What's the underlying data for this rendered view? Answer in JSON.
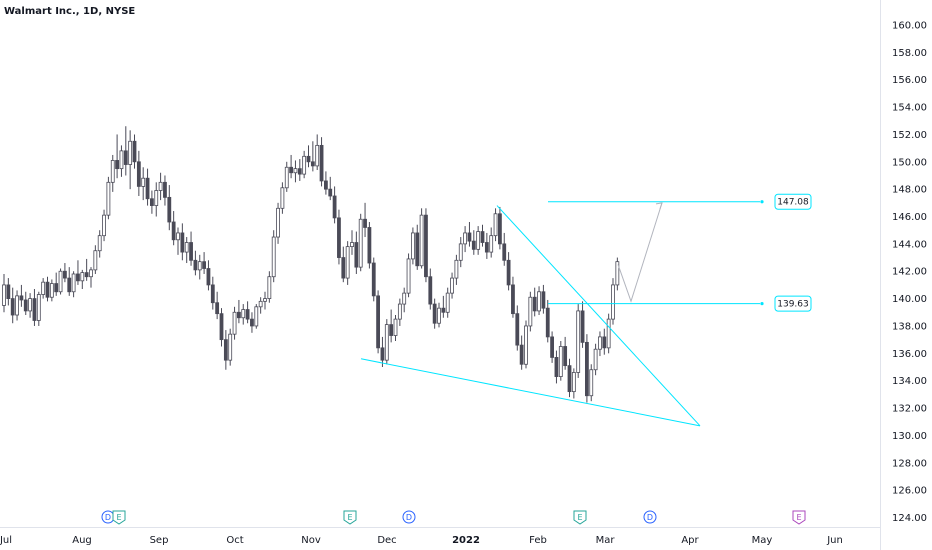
{
  "chart_data": {
    "type": "candlestick",
    "title": "Walmart Inc., 1D, NYSE",
    "ylim": [
      123,
      161.5
    ],
    "y_ticks": [
      124,
      126,
      128,
      130,
      132,
      134,
      136,
      138,
      140,
      142,
      144,
      146,
      148,
      150,
      152,
      154,
      156,
      158,
      160
    ],
    "x_ticks": [
      "Jul",
      "Aug",
      "Sep",
      "Oct",
      "Nov",
      "Dec",
      "2022",
      "Feb",
      "Mar",
      "Apr",
      "May",
      "Jun"
    ],
    "x_ticks_bold": [
      "2022"
    ],
    "colors": {
      "up": "#ffffff",
      "down": "#4a4a57",
      "outline": "#4a4a57",
      "line": "#00e5ff",
      "arrow": "#b2b5be",
      "e_event": "#26a69a",
      "d_event": "#2962ff",
      "e_future": "#ab47bc"
    },
    "candles": [
      [
        139.5,
        141.8,
        139.0,
        141.0
      ],
      [
        141.0,
        141.5,
        139.5,
        140.0
      ],
      [
        140.0,
        140.8,
        138.2,
        138.8
      ],
      [
        138.8,
        140.6,
        138.4,
        140.2
      ],
      [
        140.2,
        141.0,
        139.4,
        139.9
      ],
      [
        139.9,
        140.5,
        138.8,
        139.1
      ],
      [
        139.1,
        140.4,
        138.6,
        140.0
      ],
      [
        140.0,
        140.7,
        138.0,
        138.4
      ],
      [
        138.4,
        140.5,
        138.0,
        140.3
      ],
      [
        140.3,
        141.5,
        140.0,
        141.2
      ],
      [
        141.2,
        141.6,
        139.8,
        140.1
      ],
      [
        140.1,
        141.4,
        139.8,
        141.1
      ],
      [
        141.1,
        141.9,
        140.2,
        140.5
      ],
      [
        140.5,
        142.2,
        140.3,
        142.0
      ],
      [
        142.0,
        142.6,
        141.2,
        141.5
      ],
      [
        141.5,
        142.3,
        140.2,
        140.5
      ],
      [
        140.5,
        142.0,
        140.1,
        141.8
      ],
      [
        141.8,
        142.8,
        141.0,
        141.3
      ],
      [
        141.3,
        142.1,
        140.7,
        141.9
      ],
      [
        141.9,
        142.9,
        141.3,
        141.6
      ],
      [
        141.6,
        142.3,
        140.8,
        142.1
      ],
      [
        142.1,
        143.9,
        141.8,
        143.5
      ],
      [
        143.5,
        145.0,
        143.0,
        144.6
      ],
      [
        144.6,
        146.5,
        144.2,
        146.1
      ],
      [
        146.1,
        148.9,
        145.8,
        148.5
      ],
      [
        148.5,
        150.5,
        147.8,
        150.1
      ],
      [
        150.1,
        152.0,
        148.8,
        149.5
      ],
      [
        149.5,
        151.2,
        148.9,
        150.8
      ],
      [
        150.8,
        152.6,
        149.0,
        149.8
      ],
      [
        149.8,
        152.3,
        148.0,
        151.5
      ],
      [
        151.5,
        152.0,
        149.5,
        150.0
      ],
      [
        150.0,
        150.8,
        147.5,
        148.2
      ],
      [
        148.2,
        149.6,
        147.2,
        148.8
      ],
      [
        148.8,
        149.5,
        146.8,
        147.3
      ],
      [
        147.3,
        147.9,
        146.2,
        146.8
      ],
      [
        146.8,
        148.5,
        146.0,
        147.9
      ],
      [
        147.9,
        149.2,
        147.2,
        148.5
      ],
      [
        148.5,
        149.0,
        146.8,
        147.4
      ],
      [
        147.4,
        148.3,
        145.0,
        145.6
      ],
      [
        145.6,
        146.4,
        143.9,
        144.3
      ],
      [
        144.3,
        145.2,
        143.2,
        144.8
      ],
      [
        144.8,
        145.5,
        142.8,
        143.4
      ],
      [
        143.4,
        144.5,
        142.6,
        144.1
      ],
      [
        144.1,
        144.9,
        142.4,
        142.8
      ],
      [
        142.8,
        143.5,
        141.7,
        142.1
      ],
      [
        142.1,
        143.2,
        141.4,
        142.7
      ],
      [
        142.7,
        143.4,
        141.8,
        142.2
      ],
      [
        142.2,
        142.8,
        140.6,
        141.0
      ],
      [
        141.0,
        141.6,
        139.2,
        139.7
      ],
      [
        139.7,
        140.5,
        138.5,
        138.9
      ],
      [
        138.9,
        139.3,
        136.5,
        137.0
      ],
      [
        137.0,
        137.7,
        134.8,
        135.5
      ],
      [
        135.5,
        137.8,
        135.1,
        137.4
      ],
      [
        137.4,
        139.4,
        137.0,
        139.0
      ],
      [
        139.0,
        139.9,
        138.2,
        138.6
      ],
      [
        138.6,
        139.6,
        138.1,
        139.2
      ],
      [
        139.2,
        139.8,
        138.2,
        138.5
      ],
      [
        138.5,
        139.0,
        137.5,
        138.0
      ],
      [
        138.0,
        139.6,
        137.8,
        139.4
      ],
      [
        139.4,
        140.1,
        138.9,
        139.8
      ],
      [
        139.8,
        140.5,
        139.2,
        140.0
      ],
      [
        140.0,
        142.0,
        139.7,
        141.6
      ],
      [
        141.6,
        145.0,
        141.2,
        144.5
      ],
      [
        144.5,
        147.0,
        144.0,
        146.6
      ],
      [
        146.6,
        148.5,
        146.2,
        148.1
      ],
      [
        148.1,
        150.0,
        147.8,
        149.6
      ],
      [
        149.6,
        150.5,
        148.8,
        149.2
      ],
      [
        149.2,
        150.1,
        148.5,
        149.5
      ],
      [
        149.5,
        150.2,
        148.6,
        149.1
      ],
      [
        149.1,
        150.8,
        148.8,
        150.4
      ],
      [
        150.4,
        151.2,
        149.6,
        150.0
      ],
      [
        150.0,
        151.5,
        149.3,
        149.7
      ],
      [
        149.7,
        152.0,
        149.4,
        151.2
      ],
      [
        151.2,
        151.8,
        148.2,
        148.6
      ],
      [
        148.6,
        149.3,
        147.6,
        148.0
      ],
      [
        148.0,
        148.9,
        147.2,
        147.5
      ],
      [
        147.5,
        148.2,
        145.5,
        145.9
      ],
      [
        145.9,
        146.5,
        142.5,
        143.0
      ],
      [
        143.0,
        143.8,
        141.2,
        141.5
      ],
      [
        141.5,
        144.2,
        141.0,
        143.8
      ],
      [
        143.8,
        145.0,
        143.2,
        144.1
      ],
      [
        144.1,
        144.9,
        141.8,
        142.3
      ],
      [
        142.3,
        146.2,
        142.0,
        145.8
      ],
      [
        145.8,
        147.0,
        144.5,
        145.2
      ],
      [
        145.2,
        145.6,
        142.2,
        142.6
      ],
      [
        142.6,
        143.0,
        139.8,
        140.2
      ],
      [
        140.2,
        140.6,
        136.0,
        136.4
      ],
      [
        136.4,
        137.2,
        135.0,
        135.5
      ],
      [
        135.5,
        138.5,
        135.2,
        138.1
      ],
      [
        138.1,
        139.2,
        136.8,
        137.3
      ],
      [
        137.3,
        138.8,
        136.9,
        138.5
      ],
      [
        138.5,
        140.0,
        138.0,
        139.6
      ],
      [
        139.6,
        140.8,
        139.0,
        140.4
      ],
      [
        140.4,
        143.3,
        140.1,
        142.9
      ],
      [
        142.9,
        145.2,
        142.5,
        144.8
      ],
      [
        144.8,
        145.4,
        142.1,
        142.4
      ],
      [
        142.4,
        146.6,
        142.2,
        146.1
      ],
      [
        146.1,
        146.6,
        141.2,
        141.6
      ],
      [
        141.6,
        142.2,
        139.2,
        139.6
      ],
      [
        139.6,
        140.0,
        137.8,
        138.2
      ],
      [
        138.2,
        139.7,
        137.9,
        139.3
      ],
      [
        139.3,
        140.2,
        138.6,
        139.0
      ],
      [
        139.0,
        140.8,
        138.6,
        140.4
      ],
      [
        140.4,
        141.9,
        140.0,
        141.5
      ],
      [
        141.5,
        143.2,
        141.0,
        142.8
      ],
      [
        142.8,
        144.5,
        142.3,
        144.0
      ],
      [
        144.0,
        145.3,
        143.4,
        144.8
      ],
      [
        144.8,
        145.6,
        143.8,
        144.2
      ],
      [
        144.2,
        145.0,
        143.2,
        143.6
      ],
      [
        143.6,
        145.3,
        143.2,
        144.9
      ],
      [
        144.9,
        145.4,
        143.8,
        144.1
      ],
      [
        144.1,
        144.8,
        142.9,
        143.4
      ],
      [
        143.4,
        145.2,
        143.0,
        144.6
      ],
      [
        144.6,
        146.6,
        144.2,
        146.2
      ],
      [
        146.2,
        146.7,
        143.6,
        144.0
      ],
      [
        144.0,
        144.8,
        142.4,
        142.8
      ],
      [
        142.8,
        143.4,
        140.6,
        141.0
      ],
      [
        141.0,
        141.6,
        138.6,
        138.9
      ],
      [
        138.9,
        139.5,
        136.2,
        136.6
      ],
      [
        136.6,
        137.3,
        134.8,
        135.2
      ],
      [
        135.2,
        138.4,
        134.9,
        138.0
      ],
      [
        138.0,
        140.5,
        137.6,
        140.1
      ],
      [
        140.1,
        140.8,
        138.7,
        139.1
      ],
      [
        139.1,
        140.9,
        138.8,
        140.5
      ],
      [
        140.5,
        141.0,
        138.9,
        139.3
      ],
      [
        139.3,
        139.9,
        136.8,
        137.2
      ],
      [
        137.2,
        137.6,
        135.3,
        135.7
      ],
      [
        135.7,
        136.2,
        133.8,
        134.3
      ],
      [
        134.3,
        136.9,
        134.0,
        136.5
      ],
      [
        136.5,
        137.2,
        134.8,
        135.1
      ],
      [
        135.1,
        135.6,
        132.8,
        133.2
      ],
      [
        133.2,
        134.9,
        132.7,
        134.6
      ],
      [
        134.6,
        139.6,
        134.2,
        139.1
      ],
      [
        139.1,
        139.8,
        136.4,
        136.8
      ],
      [
        136.8,
        137.4,
        132.4,
        132.9
      ],
      [
        132.9,
        135.2,
        132.5,
        134.8
      ],
      [
        134.8,
        136.7,
        134.4,
        136.3
      ],
      [
        136.3,
        137.6,
        135.8,
        137.2
      ],
      [
        137.2,
        137.8,
        135.9,
        136.4
      ],
      [
        136.4,
        138.9,
        136.0,
        138.5
      ],
      [
        138.5,
        141.5,
        138.1,
        141.0
      ],
      [
        141.0,
        143.0,
        140.6,
        142.7
      ]
    ],
    "pattern_lines": [
      {
        "role": "upper-trendline",
        "from": [
          "Jan",
          146.8
        ],
        "to": [
          "Apr",
          130.7
        ]
      },
      {
        "role": "lower-trendline",
        "from": [
          "Nov",
          135.6
        ],
        "to": [
          "Apr",
          130.7
        ]
      },
      {
        "role": "target",
        "value": 147.08
      },
      {
        "role": "breakout",
        "value": 139.63
      }
    ],
    "projection": [
      142.5,
      139.8,
      147.0
    ],
    "price_labels": [
      "147.08",
      "139.63"
    ],
    "events": [
      {
        "label": "D",
        "kind": "dividend"
      },
      {
        "label": "E",
        "kind": "earnings"
      },
      {
        "label": "E",
        "kind": "earnings"
      },
      {
        "label": "D",
        "kind": "dividend"
      },
      {
        "label": "E",
        "kind": "earnings"
      },
      {
        "label": "D",
        "kind": "dividend"
      },
      {
        "label": "D",
        "kind": "dividend"
      },
      {
        "label": "E",
        "kind": "earnings-future"
      }
    ]
  }
}
